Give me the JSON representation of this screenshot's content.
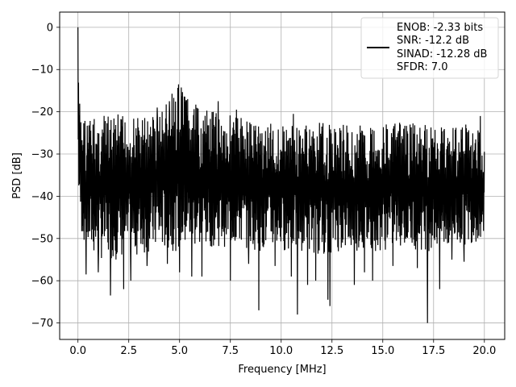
{
  "chart_data": {
    "type": "line",
    "xlabel": "Frequency [MHz]",
    "ylabel": "PSD [dB]",
    "xlim": [
      -0.9,
      21.0
    ],
    "ylim": [
      -73.9,
      3.6
    ],
    "xticks": [
      0.0,
      2.5,
      5.0,
      7.5,
      10.0,
      12.5,
      15.0,
      17.5,
      20.0
    ],
    "xtick_labels": [
      "0.0",
      "2.5",
      "5.0",
      "7.5",
      "10.0",
      "12.5",
      "15.0",
      "17.5",
      "20.0"
    ],
    "yticks": [
      0,
      -10,
      -20,
      -30,
      -40,
      -50,
      -60,
      -70
    ],
    "ytick_labels": [
      "0",
      "−10",
      "−20",
      "−30",
      "−40",
      "−50",
      "−60",
      "−70"
    ],
    "grid": true,
    "legend": {
      "placement": "top-right",
      "entries": [
        "ENOB: -2.33 bits",
        "SNR: -12.2 dB",
        "SINAD: -12.28 dB",
        "SFDR: 7.0"
      ]
    },
    "series": [
      {
        "color": "#000000",
        "x": [
          0.0,
          0.02,
          0.05,
          0.1,
          0.2,
          0.5,
          1.0,
          2.0,
          3.0,
          4.0,
          5.0,
          6.0,
          7.0,
          8.0,
          9.0,
          10.0,
          11.0,
          12.0,
          13.0,
          14.0,
          15.0,
          16.0,
          17.0,
          18.0,
          19.0,
          20.0
        ],
        "upper": [
          0.0,
          -10.5,
          -15.0,
          -18.0,
          -20.0,
          -21.0,
          -21.0,
          -20.5,
          -21.0,
          -19.5,
          -13.5,
          -19.5,
          -20.0,
          -20.5,
          -22.0,
          -23.0,
          -23.0,
          -22.5,
          -23.0,
          -23.0,
          -22.5,
          -22.5,
          -23.0,
          -22.5,
          -22.0,
          -25.0
        ],
        "lower": [
          -28.0,
          -35.0,
          -42.0,
          -45.0,
          -50.0,
          -53.0,
          -55.0,
          -55.0,
          -54.0,
          -53.0,
          -53.0,
          -52.0,
          -52.0,
          -52.0,
          -53.0,
          -53.0,
          -53.0,
          -54.0,
          -53.0,
          -53.0,
          -53.0,
          -52.0,
          -53.0,
          -53.0,
          -52.0,
          -50.0
        ],
        "dips": [
          {
            "x": 0.4,
            "y": -58.5
          },
          {
            "x": 1.0,
            "y": -58.0
          },
          {
            "x": 1.6,
            "y": -63.5
          },
          {
            "x": 2.25,
            "y": -62.0
          },
          {
            "x": 2.6,
            "y": -60.0
          },
          {
            "x": 3.4,
            "y": -56.5
          },
          {
            "x": 4.4,
            "y": -56.0
          },
          {
            "x": 5.0,
            "y": -58.0
          },
          {
            "x": 5.6,
            "y": -59.0
          },
          {
            "x": 6.1,
            "y": -59.0
          },
          {
            "x": 7.5,
            "y": -60.0
          },
          {
            "x": 8.4,
            "y": -56.0
          },
          {
            "x": 8.9,
            "y": -67.0
          },
          {
            "x": 9.7,
            "y": -56.5
          },
          {
            "x": 10.5,
            "y": -59.0
          },
          {
            "x": 10.8,
            "y": -68.0
          },
          {
            "x": 11.3,
            "y": -61.0
          },
          {
            "x": 11.7,
            "y": -60.0
          },
          {
            "x": 12.3,
            "y": -64.5
          },
          {
            "x": 12.4,
            "y": -66.0
          },
          {
            "x": 13.6,
            "y": -61.0
          },
          {
            "x": 14.1,
            "y": -58.0
          },
          {
            "x": 14.5,
            "y": -60.0
          },
          {
            "x": 15.5,
            "y": -56.5
          },
          {
            "x": 16.7,
            "y": -57.0
          },
          {
            "x": 17.2,
            "y": -70.0
          },
          {
            "x": 17.8,
            "y": -62.0
          },
          {
            "x": 18.4,
            "y": -55.0
          },
          {
            "x": 19.0,
            "y": -55.5
          },
          {
            "x": 19.8,
            "y": -62.0
          }
        ],
        "peaks": [
          {
            "x": 0.0,
            "y": 0.0
          },
          {
            "x": 4.95,
            "y": -13.5
          },
          {
            "x": 3.9,
            "y": -19.0
          },
          {
            "x": 4.5,
            "y": -17.5
          },
          {
            "x": 5.4,
            "y": -17.0
          },
          {
            "x": 6.9,
            "y": -17.5
          },
          {
            "x": 7.8,
            "y": -19.5
          },
          {
            "x": 10.6,
            "y": -20.5
          },
          {
            "x": 19.8,
            "y": -21.0
          }
        ]
      }
    ]
  }
}
